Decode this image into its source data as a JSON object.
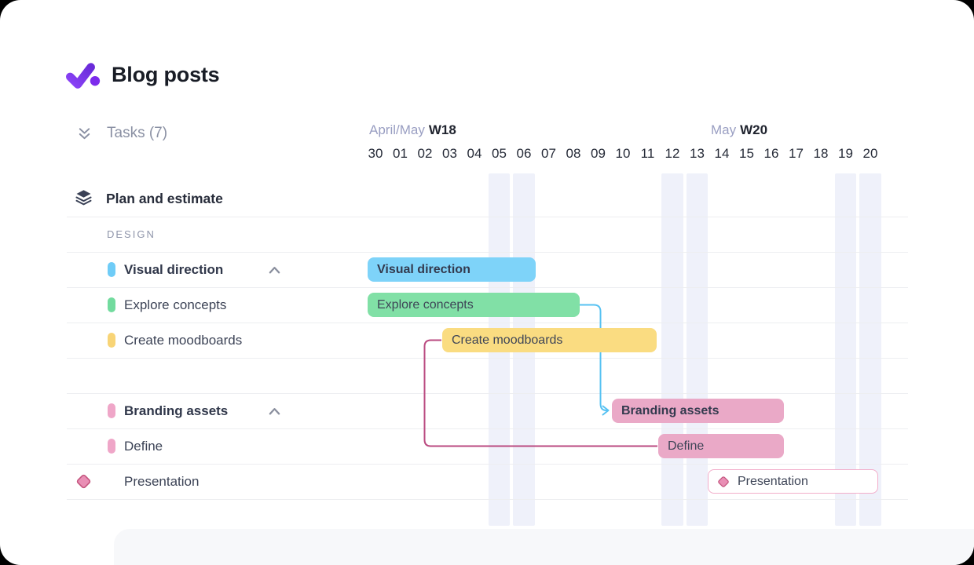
{
  "page": {
    "title": "Blog posts"
  },
  "tasks_panel": {
    "header_label": "Tasks (7)"
  },
  "timeline": {
    "week_labels": [
      {
        "months": "April/May",
        "week": "W18"
      },
      {
        "months": "May",
        "week": "W20"
      }
    ],
    "days": [
      "30",
      "01",
      "02",
      "03",
      "04",
      "05",
      "06",
      "07",
      "08",
      "09",
      "10",
      "11",
      "12",
      "13",
      "14",
      "15",
      "16",
      "17",
      "18",
      "19",
      "20"
    ],
    "weekend_columns": [
      5,
      6,
      12,
      13,
      19,
      20
    ]
  },
  "task_list": {
    "group": {
      "name": "Plan and estimate"
    },
    "section_label": "DESIGN",
    "rows": [
      {
        "name": "Visual direction",
        "color": "#6FCCF7",
        "bold": true,
        "collapsible": true
      },
      {
        "name": "Explore concepts",
        "color": "#72DB9E"
      },
      {
        "name": "Create moodboards",
        "color": "#F8D476"
      },
      {
        "name": "Branding assets",
        "color": "#EFA6C8",
        "bold": true,
        "collapsible": true
      },
      {
        "name": "Define",
        "color": "#EFA6C8"
      },
      {
        "name": "Presentation",
        "color": "#E98FB5",
        "milestone": true
      }
    ]
  },
  "gantt": {
    "bars": [
      {
        "label": "Visual direction",
        "color": "#7ED3F9",
        "start": "Apr 30",
        "end": "May 06",
        "bold": true
      },
      {
        "label": "Explore concepts",
        "color": "#81E0A6",
        "start": "Apr 30",
        "end": "May 08"
      },
      {
        "label": "Create moodboards",
        "color": "#FADC81",
        "start": "May 03",
        "end": "May 11"
      },
      {
        "label": "Branding assets",
        "color": "#EAA9C7",
        "start": "May 10",
        "end": "May 16",
        "bold": true
      },
      {
        "label": "Define",
        "color": "#EAA9C7",
        "start": "May 12",
        "end": "May 16"
      },
      {
        "label": "Presentation",
        "color": "#FFFFFF",
        "border_color": "#F2ADCA",
        "start": "May 14",
        "end": "May 20",
        "milestone": true
      }
    ],
    "dependencies": [
      {
        "from": "Explore concepts",
        "to": "Branding assets",
        "type": "finish-to-start",
        "color": "#57C2F2"
      },
      {
        "from": "Create moodboards",
        "to": "Define",
        "type": "start-to-start",
        "color": "#BA4A80"
      }
    ]
  },
  "theme": {
    "weekend_band": "#EFF1FA",
    "row_line": "#EDEEF1",
    "muted_text": "#8A90A3",
    "month_text": "#999EC2",
    "dark_text": "#20242F",
    "diamond_fill": "#E98FB5",
    "diamond_stroke": "#C4557E"
  }
}
